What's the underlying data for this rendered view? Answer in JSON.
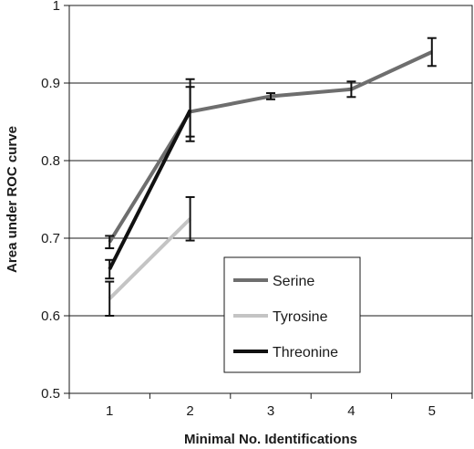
{
  "chart_data": {
    "type": "line",
    "xlabel": "Minimal No. Identifications",
    "ylabel": "Area under ROC curve",
    "categories": [
      "1",
      "2",
      "3",
      "4",
      "5"
    ],
    "yticks": [
      "0.5",
      "0.6",
      "0.7",
      "0.8",
      "0.9",
      "1"
    ],
    "ylim": [
      0.5,
      1.0
    ],
    "grid": "horizontal",
    "legend_position": "bottom-right",
    "series": [
      {
        "name": "Serine",
        "color": "#6e6e6e",
        "x": [
          1,
          2,
          3,
          4,
          5
        ],
        "values": [
          0.695,
          0.863,
          0.883,
          0.892,
          0.94
        ],
        "err": [
          0.008,
          0.032,
          0.004,
          0.01,
          0.018
        ]
      },
      {
        "name": "Tyrosine",
        "color": "#c4c4c4",
        "x": [
          1,
          2
        ],
        "values": [
          0.622,
          0.725
        ],
        "err": [
          0.022,
          0.028
        ]
      },
      {
        "name": "Threonine",
        "color": "#111111",
        "x": [
          1,
          2
        ],
        "values": [
          0.66,
          0.865
        ],
        "err": [
          0.012,
          0.04
        ]
      }
    ]
  }
}
